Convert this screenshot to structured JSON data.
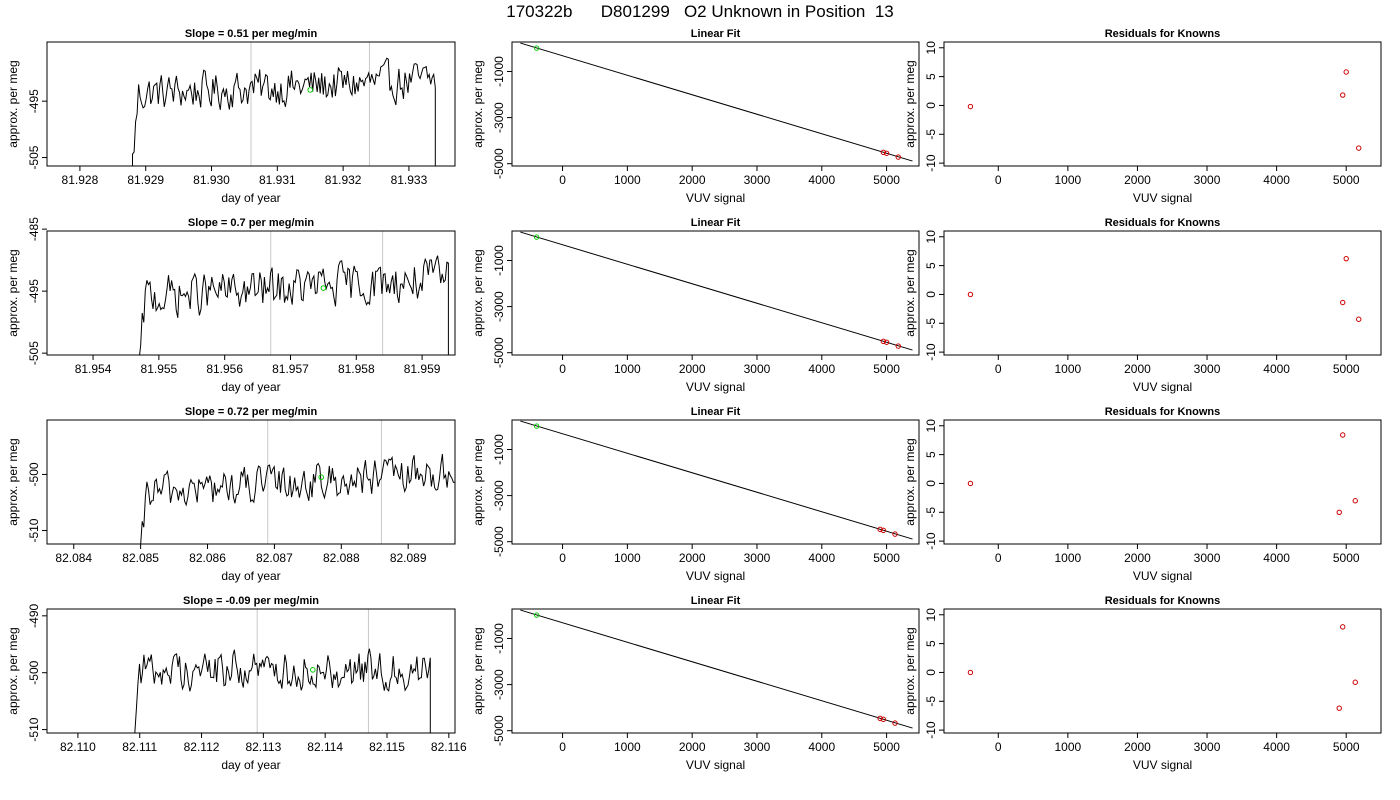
{
  "title": "170322b      D801299   O2 Unknown in Position  13",
  "chart_data": [
    {
      "type": "line",
      "title": "Slope =  0.51  per meg/min",
      "xlabel": "day of year",
      "ylabel": "approx. per meg",
      "xlim": [
        81.9275,
        81.9337
      ],
      "ylim": [
        -506.5,
        -484.5
      ],
      "xticks": [
        "81.928",
        "81.929",
        "81.930",
        "81.931",
        "81.932",
        "81.933"
      ],
      "yticks": [
        "-505",
        "-495"
      ],
      "vlines": [
        81.9306,
        81.9324
      ],
      "series_start": 81.9288,
      "series_end": 81.9334,
      "series_mean": -492.5,
      "series_rise": 1.2,
      "marker": {
        "x": 81.9315,
        "y": -493,
        "color": "#00cc00"
      }
    },
    {
      "type": "scatter",
      "title": "Linear Fit",
      "xlabel": "VUV signal",
      "ylabel": "approx. per meg",
      "xlim": [
        -780,
        5500
      ],
      "ylim": [
        -5100,
        280
      ],
      "xticks": [
        "0",
        "1000",
        "2000",
        "3000",
        "4000",
        "5000"
      ],
      "yticks": [
        "-5000",
        "-3000",
        "-1000"
      ],
      "fit_line": {
        "x": [
          -650,
          5400
        ],
        "y": [
          233,
          -4885
        ]
      },
      "points": [
        {
          "x": -400,
          "y": 15,
          "color": "#00cc00"
        },
        {
          "x": 4950,
          "y": -4507,
          "color": "#cc0000"
        },
        {
          "x": 5000,
          "y": -4548,
          "color": "#cc0000"
        },
        {
          "x": 5180,
          "y": -4713,
          "color": "#cc0000"
        }
      ]
    },
    {
      "type": "scatter",
      "title": "Residuals for Knowns",
      "xlabel": "VUV signal",
      "ylabel": "approx. per meg",
      "xlim": [
        -780,
        5500
      ],
      "ylim": [
        -10.5,
        11
      ],
      "xticks": [
        "0",
        "1000",
        "2000",
        "3000",
        "4000",
        "5000"
      ],
      "yticks": [
        "-10",
        "-5",
        "0",
        "5",
        "10"
      ],
      "points": [
        {
          "x": -400,
          "y": -0.2,
          "color": "#cc0000"
        },
        {
          "x": 4950,
          "y": 1.8,
          "color": "#cc0000"
        },
        {
          "x": 5000,
          "y": 5.8,
          "color": "#cc0000"
        },
        {
          "x": 5180,
          "y": -7.4,
          "color": "#cc0000"
        }
      ]
    },
    {
      "type": "line",
      "title": "Slope =  0.7  per meg/min",
      "xlabel": "day of year",
      "ylabel": "approx. per meg",
      "xlim": [
        81.9533,
        81.9595
      ],
      "ylim": [
        -505.3,
        -485.3
      ],
      "xticks": [
        "81.954",
        "81.955",
        "81.956",
        "81.957",
        "81.958",
        "81.959"
      ],
      "yticks": [
        "-505",
        "-495",
        "-485"
      ],
      "vlines": [
        81.9567,
        81.9584
      ],
      "series_start": 81.9547,
      "series_end": 81.9594,
      "series_mean": -494.5,
      "series_rise": 1.5,
      "marker": {
        "x": 81.9575,
        "y": -494.5,
        "color": "#00cc00"
      }
    },
    {
      "type": "scatter",
      "title": "Linear Fit",
      "xlabel": "VUV signal",
      "ylabel": "approx. per meg",
      "xlim": [
        -780,
        5500
      ],
      "ylim": [
        -5100,
        280
      ],
      "xticks": [
        "0",
        "1000",
        "2000",
        "3000",
        "4000",
        "5000"
      ],
      "yticks": [
        "-5000",
        "-3000",
        "-1000"
      ],
      "fit_line": {
        "x": [
          -650,
          5400
        ],
        "y": [
          233,
          -4885
        ]
      },
      "points": [
        {
          "x": -400,
          "y": 15,
          "color": "#00cc00"
        },
        {
          "x": 4950,
          "y": -4507,
          "color": "#cc0000"
        },
        {
          "x": 5000,
          "y": -4548,
          "color": "#cc0000"
        },
        {
          "x": 5180,
          "y": -4713,
          "color": "#cc0000"
        }
      ]
    },
    {
      "type": "scatter",
      "title": "Residuals for Knowns",
      "xlabel": "VUV signal",
      "ylabel": "approx. per meg",
      "xlim": [
        -780,
        5500
      ],
      "ylim": [
        -10.5,
        11
      ],
      "xticks": [
        "0",
        "1000",
        "2000",
        "3000",
        "4000",
        "5000"
      ],
      "yticks": [
        "-10",
        "-5",
        "0",
        "5",
        "10"
      ],
      "points": [
        {
          "x": -400,
          "y": 0,
          "color": "#cc0000"
        },
        {
          "x": 4950,
          "y": -1.4,
          "color": "#cc0000"
        },
        {
          "x": 5000,
          "y": 6.2,
          "color": "#cc0000"
        },
        {
          "x": 5180,
          "y": -4.3,
          "color": "#cc0000"
        }
      ]
    },
    {
      "type": "line",
      "title": "Slope =  0.72  per meg/min",
      "xlabel": "day of year",
      "ylabel": "approx. per meg",
      "xlim": [
        82.0836,
        82.0897
      ],
      "ylim": [
        -512.4,
        -490.3
      ],
      "xticks": [
        "82.084",
        "82.085",
        "82.086",
        "82.087",
        "82.088",
        "82.089"
      ],
      "yticks": [
        "-510",
        "-500"
      ],
      "vlines": [
        82.0869,
        82.0886
      ],
      "series_start": 82.085,
      "series_end": 82.0897,
      "series_mean": -501.5,
      "series_rise": 1.8,
      "marker": {
        "x": 82.0877,
        "y": -500.5,
        "color": "#00cc00"
      }
    },
    {
      "type": "scatter",
      "title": "Linear Fit",
      "xlabel": "VUV signal",
      "ylabel": "approx. per meg",
      "xlim": [
        -780,
        5500
      ],
      "ylim": [
        -5100,
        280
      ],
      "xticks": [
        "0",
        "1000",
        "2000",
        "3000",
        "4000",
        "5000"
      ],
      "yticks": [
        "-5000",
        "-3000",
        "-1000"
      ],
      "fit_line": {
        "x": [
          -650,
          5400
        ],
        "y": [
          233,
          -4885
        ]
      },
      "points": [
        {
          "x": -400,
          "y": 15,
          "color": "#00cc00"
        },
        {
          "x": 4900,
          "y": -4466,
          "color": "#cc0000"
        },
        {
          "x": 4950,
          "y": -4507,
          "color": "#cc0000"
        },
        {
          "x": 5130,
          "y": -4672,
          "color": "#cc0000"
        }
      ]
    },
    {
      "type": "scatter",
      "title": "Residuals for Knowns",
      "xlabel": "VUV signal",
      "ylabel": "approx. per meg",
      "xlim": [
        -780,
        5500
      ],
      "ylim": [
        -10.5,
        11
      ],
      "xticks": [
        "0",
        "1000",
        "2000",
        "3000",
        "4000",
        "5000"
      ],
      "yticks": [
        "-10",
        "-5",
        "0",
        "5",
        "10"
      ],
      "points": [
        {
          "x": -400,
          "y": 0,
          "color": "#cc0000"
        },
        {
          "x": 4900,
          "y": -5,
          "color": "#cc0000"
        },
        {
          "x": 4950,
          "y": 8.4,
          "color": "#cc0000"
        },
        {
          "x": 5130,
          "y": -3,
          "color": "#cc0000"
        }
      ]
    },
    {
      "type": "line",
      "title": "Slope =  -0.09  per meg/min",
      "xlabel": "day of year",
      "ylabel": "approx. per meg",
      "xlim": [
        82.1095,
        82.1161
      ],
      "ylim": [
        -510.6,
        -488.8
      ],
      "xticks": [
        "82.110",
        "82.111",
        "82.112",
        "82.113",
        "82.114",
        "82.115",
        "82.116"
      ],
      "yticks": [
        "-510",
        "-500",
        "-490"
      ],
      "vlines": [
        82.1129,
        82.1147
      ],
      "series_start": 82.1109,
      "series_end": 82.1157,
      "series_mean": -499.5,
      "series_rise": 0,
      "marker": {
        "x": 82.1138,
        "y": -499.5,
        "color": "#00cc00"
      }
    },
    {
      "type": "scatter",
      "title": "Linear Fit",
      "xlabel": "VUV signal",
      "ylabel": "approx. per meg",
      "xlim": [
        -780,
        5500
      ],
      "ylim": [
        -5100,
        280
      ],
      "xticks": [
        "0",
        "1000",
        "2000",
        "3000",
        "4000",
        "5000"
      ],
      "yticks": [
        "-5000",
        "-3000",
        "-1000"
      ],
      "fit_line": {
        "x": [
          -650,
          5400
        ],
        "y": [
          233,
          -4885
        ]
      },
      "points": [
        {
          "x": -400,
          "y": 15,
          "color": "#00cc00"
        },
        {
          "x": 4900,
          "y": -4466,
          "color": "#cc0000"
        },
        {
          "x": 4950,
          "y": -4507,
          "color": "#cc0000"
        },
        {
          "x": 5130,
          "y": -4672,
          "color": "#cc0000"
        }
      ]
    },
    {
      "type": "scatter",
      "title": "Residuals for Knowns",
      "xlabel": "VUV signal",
      "ylabel": "approx. per meg",
      "xlim": [
        -780,
        5500
      ],
      "ylim": [
        -10.5,
        11
      ],
      "xticks": [
        "0",
        "1000",
        "2000",
        "3000",
        "4000",
        "5000"
      ],
      "yticks": [
        "-10",
        "-5",
        "0",
        "5",
        "10"
      ],
      "points": [
        {
          "x": -400,
          "y": 0,
          "color": "#cc0000"
        },
        {
          "x": 4900,
          "y": -6.2,
          "color": "#cc0000"
        },
        {
          "x": 4950,
          "y": 7.9,
          "color": "#cc0000"
        },
        {
          "x": 5130,
          "y": -1.7,
          "color": "#cc0000"
        }
      ]
    }
  ]
}
